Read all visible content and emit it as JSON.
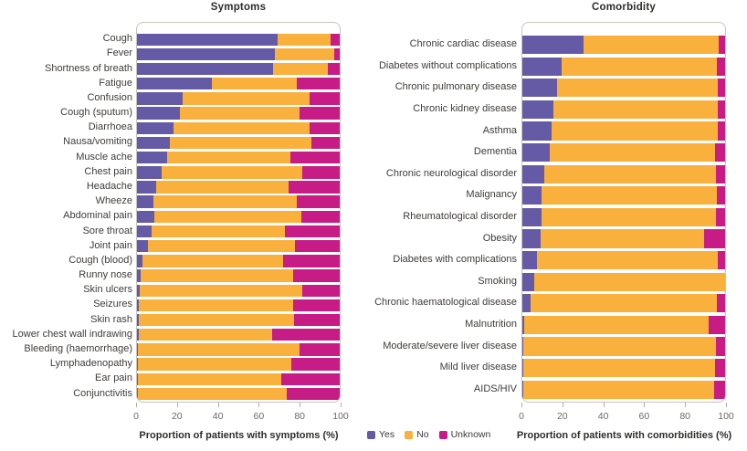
{
  "colors": {
    "yes": "#655aa5",
    "no": "#f9b03c",
    "unknown": "#c71c86",
    "frame_border": "#c9c4bf",
    "tick": "#b3aca5",
    "tick_text": "#6e6962",
    "label_text": "#3f3c39",
    "title_text": "#2f2d2b"
  },
  "legend": {
    "items": [
      {
        "label": "Yes",
        "key": "yes"
      },
      {
        "label": "No",
        "key": "no"
      },
      {
        "label": "Unknown",
        "key": "unknown"
      }
    ]
  },
  "chart_data": [
    {
      "type": "bar",
      "subtype": "horizontal-stacked",
      "title": "Symptoms",
      "xlabel": "Proportion of patients with symptoms (%)",
      "xlim": [
        0,
        100
      ],
      "x_ticks": [
        0,
        20,
        40,
        60,
        80,
        100
      ],
      "series_names": [
        "Yes",
        "No",
        "Unknown"
      ],
      "rows": [
        {
          "label": "Cough",
          "yes": 69.5,
          "no": 26,
          "unknown": 4.5
        },
        {
          "label": "Fever",
          "yes": 68,
          "no": 29.5,
          "unknown": 2.5
        },
        {
          "label": "Shortness of breath",
          "yes": 67,
          "no": 27,
          "unknown": 6
        },
        {
          "label": "Fatigue",
          "yes": 37,
          "no": 42,
          "unknown": 21
        },
        {
          "label": "Confusion",
          "yes": 22.5,
          "no": 62.5,
          "unknown": 15
        },
        {
          "label": "Cough (sputum)",
          "yes": 21,
          "no": 59,
          "unknown": 20
        },
        {
          "label": "Diarrhoea",
          "yes": 18,
          "no": 67,
          "unknown": 15
        },
        {
          "label": "Nausa/vomiting",
          "yes": 16,
          "no": 70,
          "unknown": 14
        },
        {
          "label": "Muscle ache",
          "yes": 15,
          "no": 60.5,
          "unknown": 24.5
        },
        {
          "label": "Chest pain",
          "yes": 12,
          "no": 69.5,
          "unknown": 18.5
        },
        {
          "label": "Headache",
          "yes": 9.5,
          "no": 65.5,
          "unknown": 25
        },
        {
          "label": "Wheeze",
          "yes": 8,
          "no": 71,
          "unknown": 21
        },
        {
          "label": "Abdominal pain",
          "yes": 8.5,
          "no": 72.5,
          "unknown": 19
        },
        {
          "label": "Sore throat",
          "yes": 7,
          "no": 66,
          "unknown": 27
        },
        {
          "label": "Joint pain",
          "yes": 5.5,
          "no": 72.5,
          "unknown": 22
        },
        {
          "label": "Cough (blood)",
          "yes": 2.5,
          "no": 69.5,
          "unknown": 28
        },
        {
          "label": "Runny nose",
          "yes": 2,
          "no": 75,
          "unknown": 23
        },
        {
          "label": "Skin ulcers",
          "yes": 1.5,
          "no": 80,
          "unknown": 18.5
        },
        {
          "label": "Seizures",
          "yes": 1,
          "no": 76,
          "unknown": 23
        },
        {
          "label": "Skin rash",
          "yes": 1,
          "no": 76.5,
          "unknown": 22.5
        },
        {
          "label": "Lower chest wall indrawing",
          "yes": 1,
          "no": 65.5,
          "unknown": 33.5
        },
        {
          "label": "Bleeding (haemorrhage)",
          "yes": 0.5,
          "no": 79.5,
          "unknown": 20
        },
        {
          "label": "Lymphadenopathy",
          "yes": 0.5,
          "no": 75.5,
          "unknown": 24
        },
        {
          "label": "Ear pain",
          "yes": 0.5,
          "no": 70.5,
          "unknown": 29
        },
        {
          "label": "Conjunctivitis",
          "yes": 0.5,
          "no": 73.5,
          "unknown": 26
        }
      ]
    },
    {
      "type": "bar",
      "subtype": "horizontal-stacked",
      "title": "Comorbidity",
      "xlabel": "Proportion of patients with comorbidities (%)",
      "xlim": [
        0,
        100
      ],
      "x_ticks": [
        0,
        20,
        40,
        60,
        80,
        100
      ],
      "series_names": [
        "Yes",
        "No",
        "Unknown"
      ],
      "rows": [
        {
          "label": "Chronic cardiac disease",
          "yes": 30,
          "no": 67,
          "unknown": 3
        },
        {
          "label": "Diabetes without complications",
          "yes": 19.5,
          "no": 76.5,
          "unknown": 4
        },
        {
          "label": "Chronic pulmonary disease",
          "yes": 17,
          "no": 79.5,
          "unknown": 3.5
        },
        {
          "label": "Chronic kidney disease",
          "yes": 15.5,
          "no": 81,
          "unknown": 3.5
        },
        {
          "label": "Asthma",
          "yes": 14.5,
          "no": 82,
          "unknown": 3.5
        },
        {
          "label": "Dementia",
          "yes": 13.5,
          "no": 81.5,
          "unknown": 5
        },
        {
          "label": "Chronic neurological disorder",
          "yes": 11,
          "no": 84.5,
          "unknown": 4.5
        },
        {
          "label": "Malignancy",
          "yes": 9.5,
          "no": 86.5,
          "unknown": 4
        },
        {
          "label": "Rheumatological disorder",
          "yes": 9.5,
          "no": 86,
          "unknown": 4.5
        },
        {
          "label": "Obesity",
          "yes": 9,
          "no": 80.5,
          "unknown": 10.5
        },
        {
          "label": "Diabetes with complications",
          "yes": 7,
          "no": 89.5,
          "unknown": 3.5
        },
        {
          "label": "Smoking",
          "yes": 6,
          "no": 94,
          "unknown": 0
        },
        {
          "label": "Chronic haematological disease",
          "yes": 4,
          "no": 92,
          "unknown": 4
        },
        {
          "label": "Malnutrition",
          "yes": 1,
          "no": 91,
          "unknown": 8
        },
        {
          "label": "Moderate/severe liver disease",
          "yes": 0.5,
          "no": 95,
          "unknown": 4.5
        },
        {
          "label": "Mild liver disease",
          "yes": 0.5,
          "no": 94.5,
          "unknown": 5
        },
        {
          "label": "AIDS/HIV",
          "yes": 0.5,
          "no": 94,
          "unknown": 5.5
        }
      ]
    }
  ]
}
